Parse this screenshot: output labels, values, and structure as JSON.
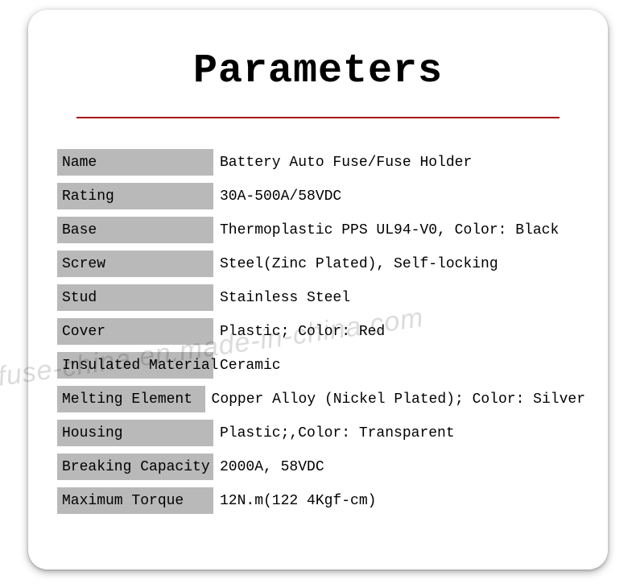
{
  "title": "Parameters",
  "divider_color": "#a7131a",
  "label_bg": "#b9b9b9",
  "text_color": "#000000",
  "card_bg": "#ffffff",
  "font_family": "Courier New",
  "title_fontsize": 50,
  "body_fontsize": 18,
  "watermark": "fuse-china.en.made-in-china.com",
  "watermark_color": "rgba(0,0,0,0.14)",
  "rows": [
    {
      "label": "Name",
      "label_width": 194,
      "value": "Battery Auto Fuse/Fuse Holder"
    },
    {
      "label": "Rating",
      "label_width": 194,
      "value": "30A-500A/58VDC"
    },
    {
      "label": "Base",
      "label_width": 194,
      "value": "Thermoplastic PPS UL94-V0, Color: Black"
    },
    {
      "label": "Screw",
      "label_width": 194,
      "value": "Steel(Zinc Plated), Self-locking"
    },
    {
      "label": "Stud",
      "label_width": 194,
      "value": "Stainless Steel"
    },
    {
      "label": "Cover",
      "label_width": 194,
      "value": "Plastic;  Color: Red"
    },
    {
      "label": "Insulated Material",
      "label_width": 194,
      "value": "Ceramic"
    },
    {
      "label": "Melting Element",
      "label_width": 194,
      "value": "Copper Alloy (Nickel Plated); Color: Silver"
    },
    {
      "label": "Housing",
      "label_width": 194,
      "value": "Plastic;,Color: Transparent"
    },
    {
      "label": "Breaking Capacity",
      "label_width": 194,
      "value": "2000A, 58VDC"
    },
    {
      "label": "Maximum Torque",
      "label_width": 194,
      "value": "12N.m(122 4Kgf-cm)"
    }
  ]
}
